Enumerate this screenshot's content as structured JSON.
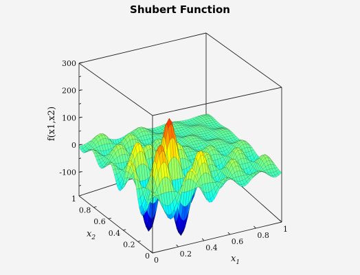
{
  "chart_data": {
    "type": "surface",
    "title": "Shubert Function",
    "xlabel": "x",
    "xlabel_sub": "1",
    "ylabel": "x",
    "ylabel_sub": "2",
    "zlabel": "f(x1,x2)",
    "xlim": [
      0,
      1
    ],
    "ylim": [
      0,
      1
    ],
    "zlim": [
      -186.73,
      300
    ],
    "x_ticks": [
      "0",
      "0.2",
      "0.4",
      "0.6",
      "0.8",
      "1"
    ],
    "y_ticks": [
      "0",
      "0.2",
      "0.4",
      "0.6",
      "0.8",
      "1"
    ],
    "z_ticks": [
      "-100",
      "0",
      "100",
      "200",
      "300"
    ],
    "z_tick_values": [
      -100,
      0,
      100,
      200,
      300
    ],
    "domain": [
      -2,
      2
    ],
    "colormap": [
      "#00007f",
      "#0000ff",
      "#00ffff",
      "#7fff7f",
      "#ffff00",
      "#ff7f00",
      "#ff0000",
      "#7f0000"
    ]
  }
}
